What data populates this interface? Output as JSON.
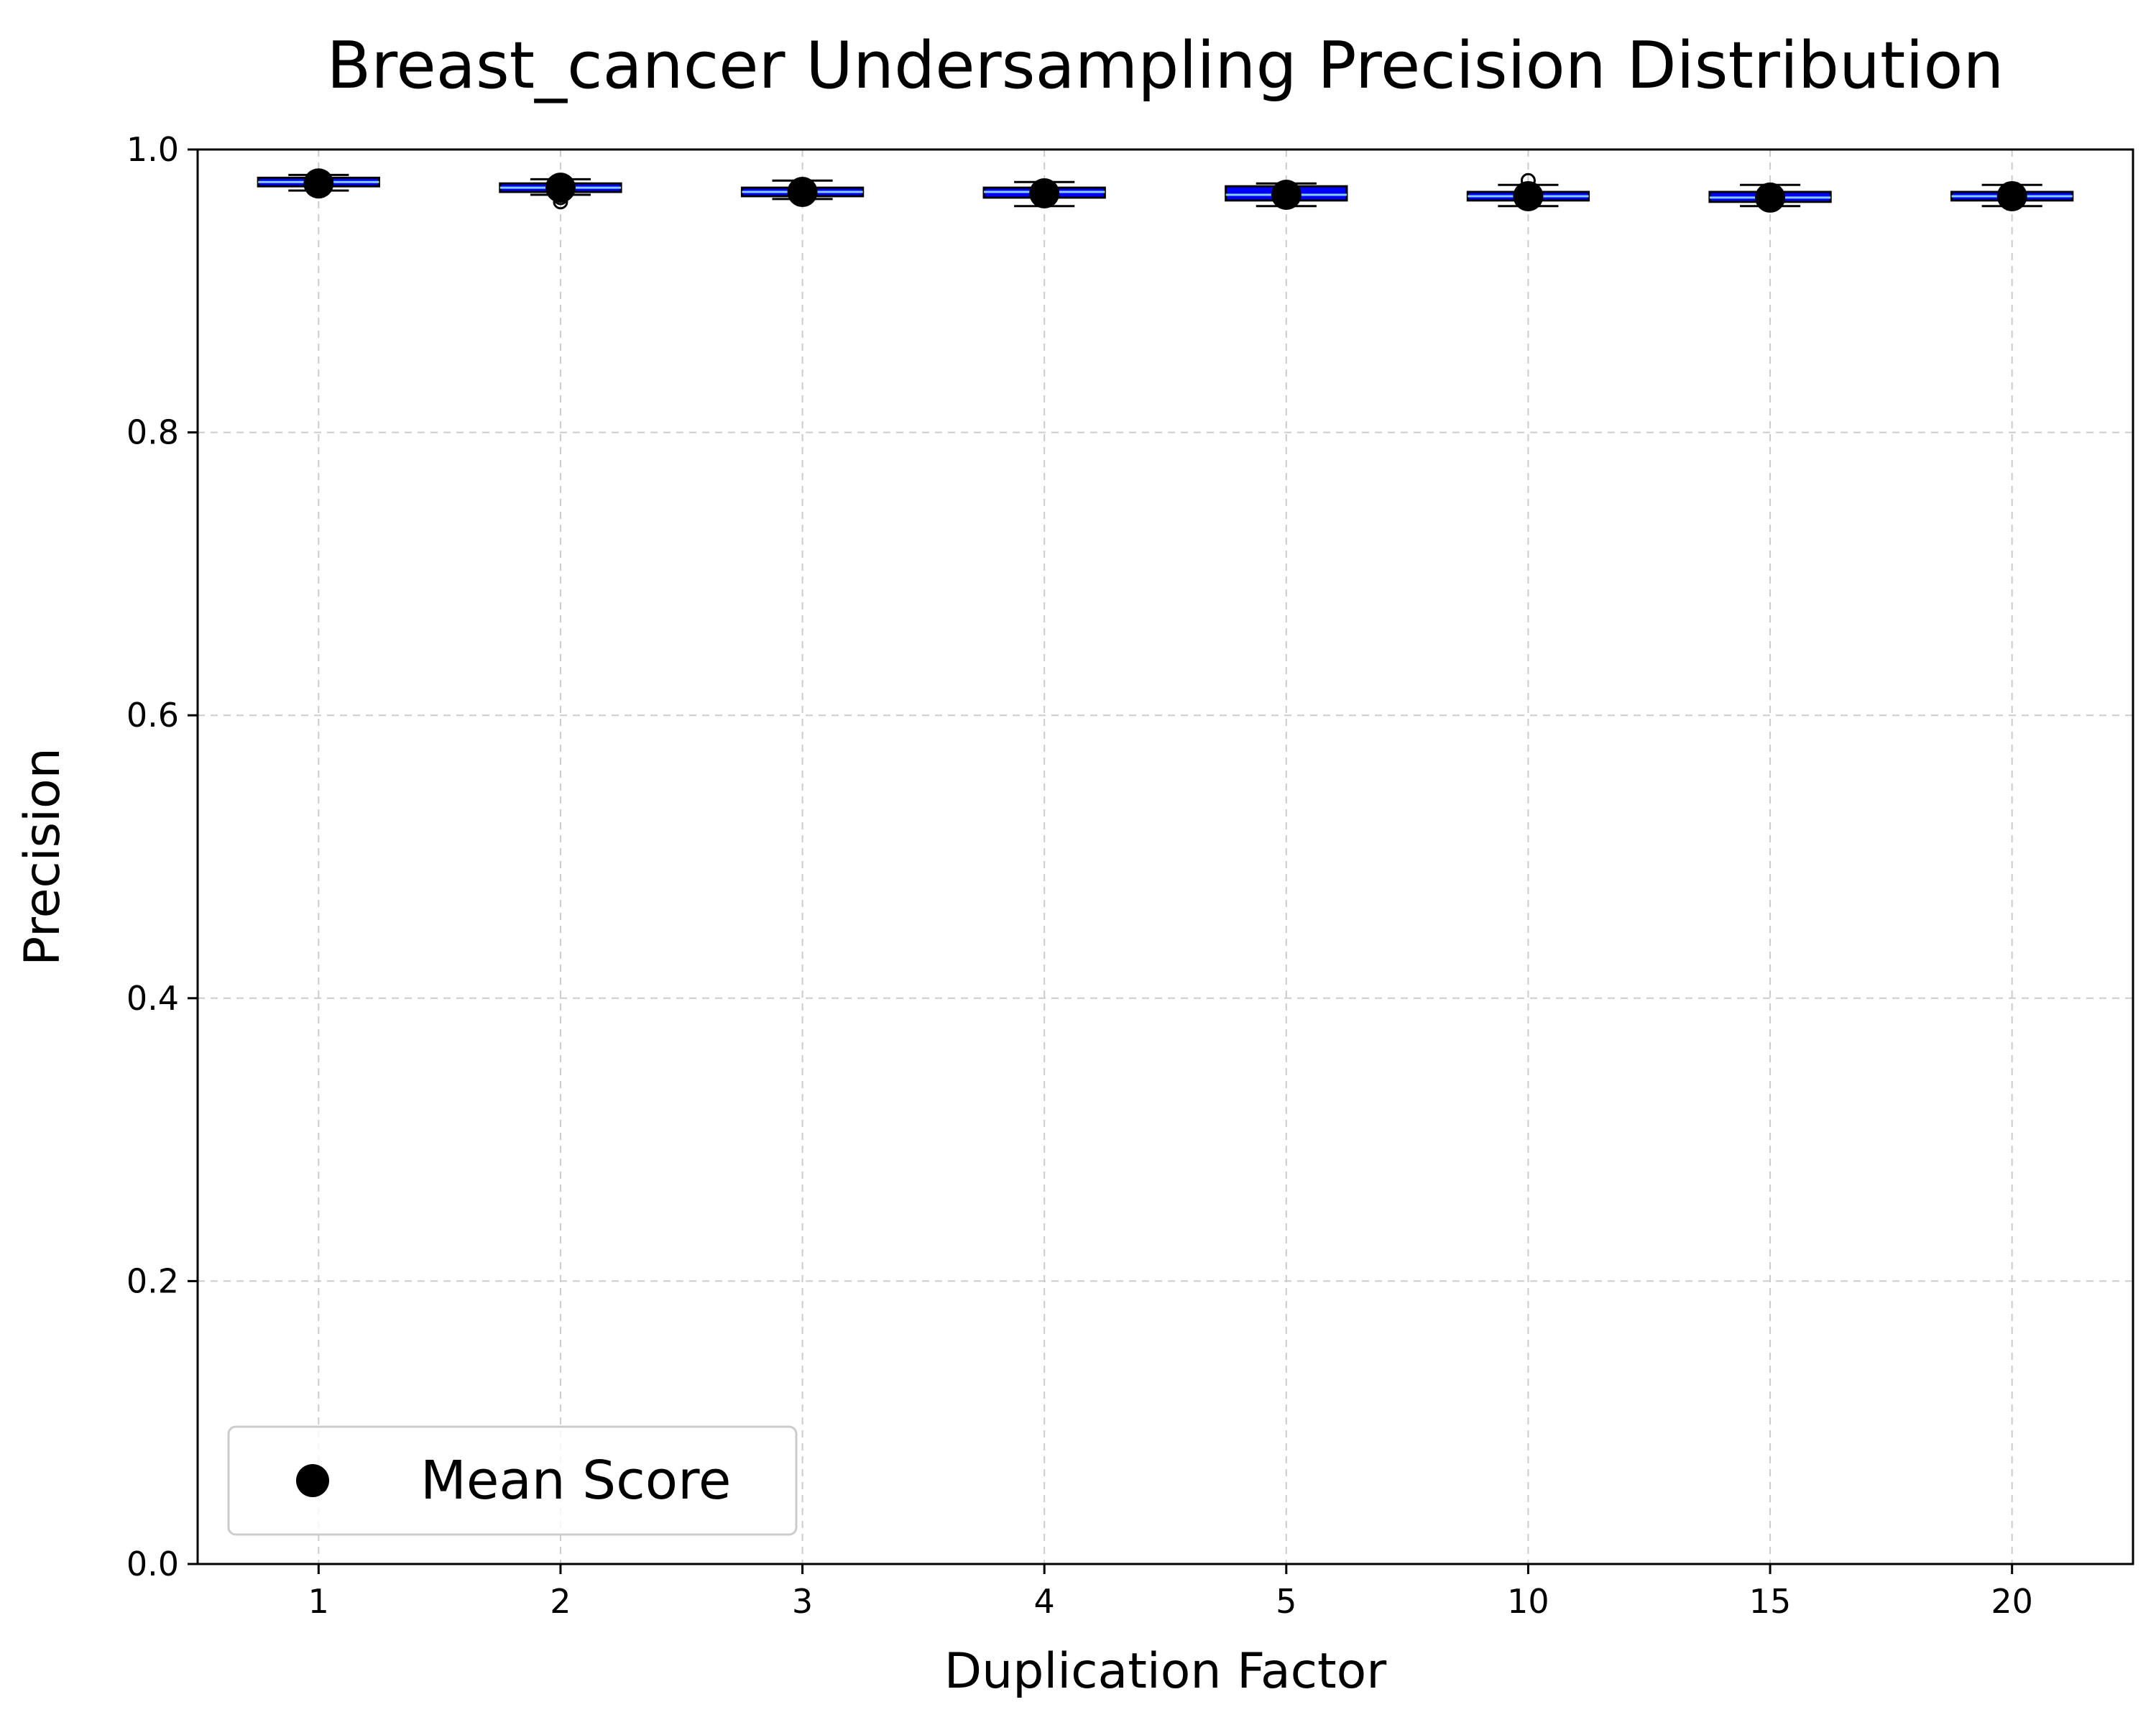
{
  "chart_data": {
    "type": "box",
    "title": "Breast_cancer Undersampling Precision Distribution",
    "xlabel": "Duplication Factor",
    "ylabel": "Precision",
    "ylim": [
      0.0,
      1.0
    ],
    "yticks": [
      "0.0",
      "0.2",
      "0.4",
      "0.6",
      "0.8",
      "1.0"
    ],
    "grid": true,
    "legend": {
      "placement": "lower-left",
      "entries": [
        "Mean Score"
      ]
    },
    "colors": {
      "box_fill": "#0000ff",
      "box_edge": "#000000",
      "median": "#87ceeb",
      "mean_marker": "#000000",
      "grid": "#cccccc"
    },
    "categories": [
      "1",
      "2",
      "3",
      "4",
      "5",
      "10",
      "15",
      "20"
    ],
    "boxes": [
      {
        "category": "1",
        "whisker_low": 0.971,
        "q1": 0.974,
        "median": 0.977,
        "q3": 0.98,
        "whisker_high": 0.982,
        "mean": 0.976,
        "outliers": []
      },
      {
        "category": "2",
        "whisker_low": 0.968,
        "q1": 0.97,
        "median": 0.973,
        "q3": 0.976,
        "whisker_high": 0.979,
        "mean": 0.973,
        "outliers": [
          0.963,
          0.966
        ]
      },
      {
        "category": "3",
        "whisker_low": 0.965,
        "q1": 0.967,
        "median": 0.97,
        "q3": 0.973,
        "whisker_high": 0.978,
        "mean": 0.97,
        "outliers": []
      },
      {
        "category": "4",
        "whisker_low": 0.96,
        "q1": 0.966,
        "median": 0.97,
        "q3": 0.973,
        "whisker_high": 0.977,
        "mean": 0.969,
        "outliers": []
      },
      {
        "category": "5",
        "whisker_low": 0.96,
        "q1": 0.964,
        "median": 0.968,
        "q3": 0.974,
        "whisker_high": 0.976,
        "mean": 0.968,
        "outliers": []
      },
      {
        "category": "10",
        "whisker_low": 0.96,
        "q1": 0.964,
        "median": 0.967,
        "q3": 0.97,
        "whisker_high": 0.975,
        "mean": 0.967,
        "outliers": [
          0.978
        ]
      },
      {
        "category": "15",
        "whisker_low": 0.96,
        "q1": 0.963,
        "median": 0.966,
        "q3": 0.97,
        "whisker_high": 0.975,
        "mean": 0.966,
        "outliers": []
      },
      {
        "category": "20",
        "whisker_low": 0.96,
        "q1": 0.964,
        "median": 0.967,
        "q3": 0.97,
        "whisker_high": 0.975,
        "mean": 0.967,
        "outliers": []
      }
    ]
  }
}
